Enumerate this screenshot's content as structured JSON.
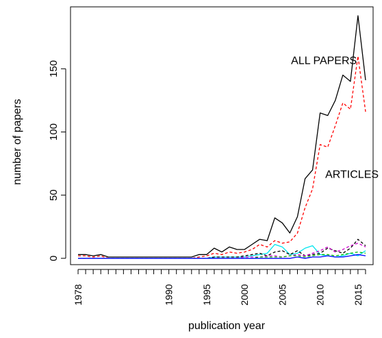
{
  "chart_data": {
    "type": "line",
    "xlabel": "publication year",
    "ylabel": "number of papers",
    "xlim": [
      1977,
      2017
    ],
    "ylim": [
      -5,
      199
    ],
    "x_ticks": [
      1978,
      1979,
      1980,
      1981,
      1982,
      1983,
      1984,
      1985,
      1986,
      1987,
      1988,
      1989,
      1990,
      1991,
      1992,
      1993,
      1994,
      1995,
      1996,
      1997,
      1998,
      1999,
      2000,
      2001,
      2002,
      2003,
      2004,
      2005,
      2006,
      2007,
      2008,
      2009,
      2010,
      2011,
      2012,
      2013,
      2014,
      2015,
      2016
    ],
    "x_tick_labels": [
      {
        "x": 1978,
        "label": "1978"
      },
      {
        "x": 1990,
        "label": "1990"
      },
      {
        "x": 1995,
        "label": "1995"
      },
      {
        "x": 2000,
        "label": "2000"
      },
      {
        "x": 2005,
        "label": "2005"
      },
      {
        "x": 2010,
        "label": "2010"
      },
      {
        "x": 2015,
        "label": "2015"
      }
    ],
    "y_ticks": [
      0,
      50,
      100,
      150
    ],
    "y_tick_labels": [
      "0",
      "50",
      "100",
      "150"
    ],
    "x": [
      1978,
      1979,
      1980,
      1981,
      1982,
      1983,
      1984,
      1985,
      1986,
      1987,
      1988,
      1989,
      1990,
      1991,
      1992,
      1993,
      1994,
      1995,
      1996,
      1997,
      1998,
      1999,
      2000,
      2001,
      2002,
      2003,
      2004,
      2005,
      2006,
      2007,
      2008,
      2009,
      2010,
      2011,
      2012,
      2013,
      2014,
      2015,
      2016
    ],
    "grid": false,
    "annotations": [
      {
        "text": "ALL PAPERS",
        "x": 2010.5,
        "y": 157
      },
      {
        "text": "ARTICLES",
        "x": 2014.2,
        "y": 67
      }
    ],
    "series": [
      {
        "color": "#000000",
        "dash": "solid",
        "values": [
          3,
          3,
          2,
          3,
          1,
          1,
          1,
          1,
          1,
          1,
          1,
          1,
          1,
          1,
          1,
          1,
          3,
          3,
          8,
          5,
          9,
          7,
          7,
          11,
          15,
          14,
          32,
          28,
          20,
          33,
          63,
          70,
          115,
          113,
          125,
          145,
          140,
          192,
          141
        ]
      },
      {
        "color": "#ff0000",
        "dash": "dashed",
        "values": [
          2,
          2,
          1,
          2,
          0,
          0,
          0,
          0,
          0,
          0,
          0,
          0,
          0,
          0,
          0,
          0,
          1,
          2,
          4,
          3,
          5,
          4,
          5,
          7,
          11,
          9,
          14,
          12,
          13,
          20,
          40,
          55,
          90,
          88,
          105,
          123,
          118,
          160,
          116
        ]
      },
      {
        "color": "#00e5ee",
        "dash": "solid",
        "values": [
          0,
          0,
          0,
          0,
          0,
          0,
          0,
          0,
          0,
          0,
          0,
          0,
          0,
          0,
          0,
          0,
          0,
          0,
          1,
          1,
          1,
          1,
          1,
          2,
          3,
          4,
          11,
          9,
          3,
          4,
          8,
          10,
          3,
          2,
          1,
          2,
          4,
          2,
          6
        ]
      },
      {
        "color": "#000000",
        "dash": "dashed",
        "values": [
          0,
          0,
          0,
          0,
          0,
          0,
          0,
          0,
          0,
          0,
          0,
          0,
          0,
          0,
          0,
          0,
          0,
          0,
          1,
          1,
          1,
          1,
          2,
          3,
          4,
          2,
          5,
          6,
          3,
          6,
          2,
          3,
          4,
          8,
          6,
          4,
          8,
          15,
          10
        ]
      },
      {
        "color": "#cc00cc",
        "dash": "dashed",
        "values": [
          0,
          0,
          0,
          0,
          0,
          0,
          0,
          0,
          0,
          0,
          0,
          0,
          0,
          0,
          0,
          0,
          0,
          0,
          0,
          0,
          0,
          0,
          1,
          1,
          1,
          2,
          2,
          1,
          2,
          3,
          2,
          4,
          6,
          9,
          5,
          7,
          10,
          12,
          9
        ]
      },
      {
        "color": "#00bb00",
        "dash": "dashed",
        "values": [
          0,
          0,
          0,
          0,
          0,
          0,
          0,
          0,
          0,
          0,
          0,
          0,
          0,
          0,
          0,
          0,
          0,
          0,
          0,
          0,
          0,
          0,
          0,
          0,
          1,
          1,
          1,
          1,
          2,
          2,
          1,
          2,
          3,
          3,
          2,
          3,
          4,
          5,
          4
        ]
      },
      {
        "color": "#0000ff",
        "dash": "solid",
        "values": [
          0,
          0,
          0,
          0,
          0,
          0,
          0,
          0,
          0,
          0,
          0,
          0,
          0,
          0,
          0,
          0,
          0,
          0,
          0,
          0,
          0,
          0,
          0,
          0,
          0,
          0,
          0,
          0,
          0,
          1,
          0,
          1,
          1,
          2,
          1,
          1,
          2,
          3,
          2
        ]
      }
    ]
  }
}
